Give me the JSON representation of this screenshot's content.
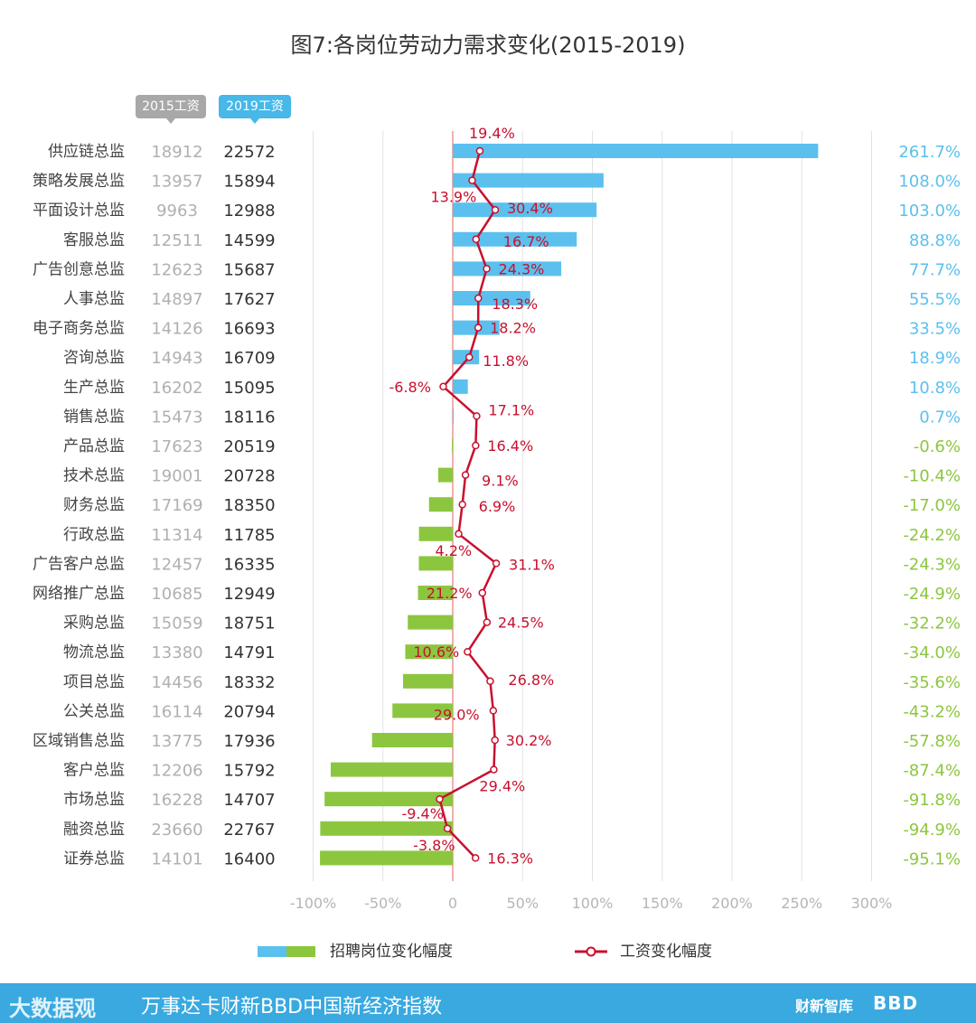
{
  "chart_data": {
    "type": "bar",
    "title": "图7:各岗位劳动力需求变化(2015-2019)",
    "column_headers": {
      "wage_2015": "2015工资",
      "wage_2019": "2019工资"
    },
    "categories": [
      "供应链总监",
      "策略发展总监",
      "平面设计总监",
      "客服总监",
      "广告创意总监",
      "人事总监",
      "电子商务总监",
      "咨询总监",
      "生产总监",
      "销售总监",
      "产品总监",
      "技术总监",
      "财务总监",
      "行政总监",
      "广告客户总监",
      "网络推广总监",
      "采购总监",
      "物流总监",
      "项目总监",
      "公关总监",
      "区域销售总监",
      "客户总监",
      "市场总监",
      "融资总监",
      "证券总监"
    ],
    "wage_2015": [
      "18912",
      "13957",
      "9963",
      "12511",
      "12623",
      "14897",
      "14126",
      "14943",
      "16202",
      "15473",
      "17623",
      "19001",
      "17169",
      "11314",
      "12457",
      "10685",
      "15059",
      "13380",
      "14456",
      "16114",
      "13775",
      "12206",
      "16228",
      "23660",
      "14101"
    ],
    "wage_2019": [
      "22572",
      "15894",
      "12988",
      "14599",
      "15687",
      "17627",
      "16693",
      "16709",
      "15095",
      "18116",
      "20519",
      "20728",
      "18350",
      "11785",
      "16335",
      "12949",
      "18751",
      "14791",
      "18332",
      "20794",
      "17936",
      "15792",
      "14707",
      "22767",
      "16400"
    ],
    "series": [
      {
        "name": "招聘岗位变化幅度",
        "type": "bar",
        "values": [
          261.7,
          108.0,
          103.0,
          88.8,
          77.7,
          55.5,
          33.5,
          18.9,
          10.8,
          0.7,
          -0.6,
          -10.4,
          -17.0,
          -24.2,
          -24.3,
          -24.9,
          -32.2,
          -34.0,
          -35.6,
          -43.2,
          -57.8,
          -87.4,
          -91.8,
          -94.9,
          -95.1
        ],
        "labels": [
          "261.7%",
          "108.0%",
          "103.0%",
          "88.8%",
          "77.7%",
          "55.5%",
          "33.5%",
          "18.9%",
          "10.8%",
          "0.7%",
          "-0.6%",
          "-10.4%",
          "-17.0%",
          "-24.2%",
          "-24.3%",
          "-24.9%",
          "-32.2%",
          "-34.0%",
          "-35.6%",
          "-43.2%",
          "-57.8%",
          "-87.4%",
          "-91.8%",
          "-94.9%",
          "-95.1%"
        ]
      },
      {
        "name": "工资变化幅度",
        "type": "line",
        "values": [
          19.4,
          13.9,
          30.4,
          16.7,
          24.3,
          18.3,
          18.2,
          11.8,
          -6.8,
          17.1,
          16.4,
          9.1,
          6.9,
          4.2,
          31.1,
          21.2,
          24.5,
          10.6,
          26.8,
          29.0,
          30.2,
          29.4,
          -9.4,
          -3.8,
          16.3
        ],
        "labels": [
          "19.4%",
          "13.9%",
          "30.4%",
          "16.7%",
          "24.3%",
          "18.3%",
          "18.2%",
          "11.8%",
          "-6.8%",
          "17.1%",
          "16.4%",
          "9.1%",
          "6.9%",
          "4.2%",
          "31.1%",
          "21.2%",
          "24.5%",
          "10.6%",
          "26.8%",
          "29.0%",
          "30.2%",
          "29.4%",
          "-9.4%",
          "-3.8%",
          "16.3%"
        ]
      }
    ],
    "xlim": [
      -100,
      300
    ],
    "x_ticks": [
      -100,
      -50,
      0,
      50,
      100,
      150,
      200,
      250,
      300
    ],
    "x_tick_labels": [
      "-100%",
      "-50%",
      "0",
      "50%",
      "100%",
      "150%",
      "200%",
      "250%",
      "300%"
    ],
    "colors": {
      "positive_bar": "#5bc0ee",
      "negative_bar": "#8cc63f",
      "line": "#c8102e",
      "pos_label": "#5bc0ee",
      "neg_label": "#8cc63f",
      "grid": "#e2e2e2",
      "zero_line": "#e06060"
    },
    "legend": {
      "bar_label": "招聘岗位变化幅度",
      "line_label": "工资变化幅度",
      "placement": "bottom"
    }
  },
  "footer": {
    "logo": "大数据观",
    "text": "万事达卡财新BBD中国新经济指数",
    "brand1": "财新智库",
    "brand2": "BBD"
  }
}
